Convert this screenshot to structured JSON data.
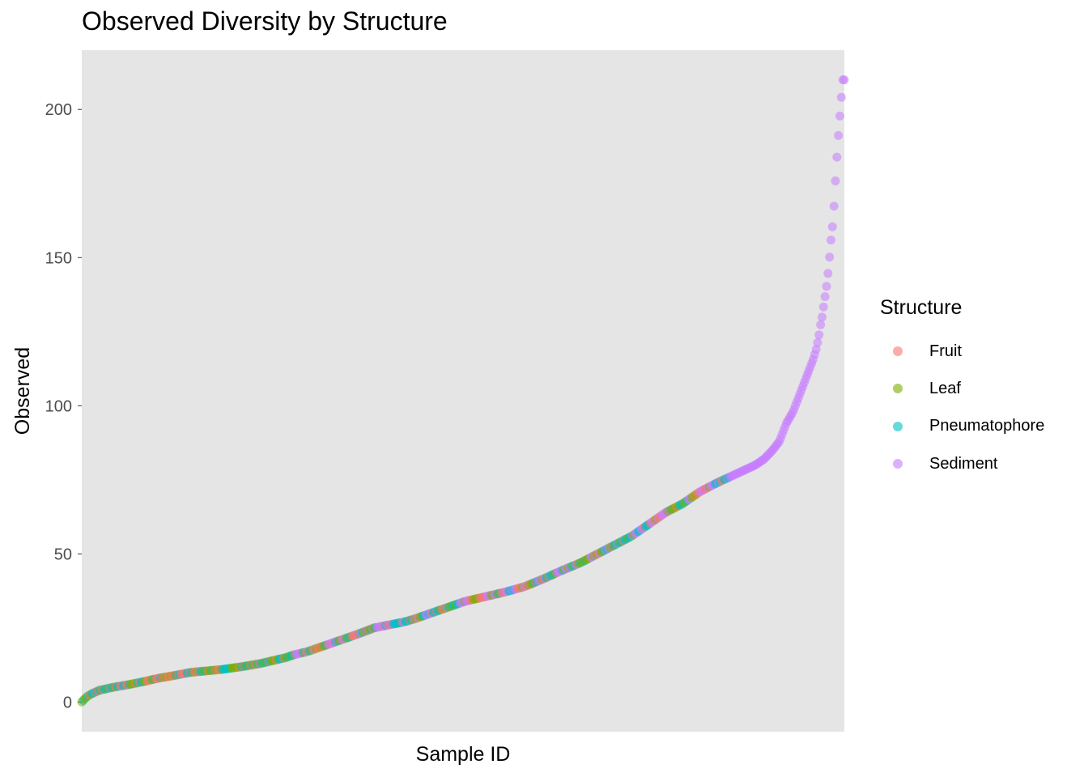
{
  "chart_data": {
    "type": "scatter",
    "title": "Observed Diversity by Structure",
    "xlabel": "Sample ID",
    "ylabel": "Observed",
    "ylim": [
      -10,
      220
    ],
    "y_ticks": [
      0,
      50,
      100,
      150,
      200
    ],
    "x_ticks_shown": false,
    "grid": false,
    "legend": {
      "title": "Structure",
      "position": "right"
    },
    "series": [
      {
        "name": "Fruit",
        "color": "#F8766D"
      },
      {
        "name": "Leaf",
        "color": "#7CAE00"
      },
      {
        "name": "Pneumatophore",
        "color": "#00BFC4"
      },
      {
        "name": "Sediment",
        "color": "#C77CFF"
      }
    ],
    "n_samples": 515,
    "observed_sorted_knots": [
      [
        1,
        0
      ],
      [
        4,
        1
      ],
      [
        8,
        2
      ],
      [
        14,
        3
      ],
      [
        22,
        4
      ],
      [
        38,
        5
      ],
      [
        58,
        6
      ],
      [
        75,
        7
      ],
      [
        90,
        8
      ],
      [
        110,
        9
      ],
      [
        128,
        10
      ],
      [
        165,
        11
      ],
      [
        190,
        12
      ],
      [
        210,
        13
      ],
      [
        225,
        14
      ],
      [
        240,
        15
      ],
      [
        250,
        16
      ],
      [
        265,
        17
      ],
      [
        275,
        18
      ],
      [
        285,
        19
      ],
      [
        295,
        20
      ],
      [
        305,
        21
      ],
      [
        315,
        22
      ],
      [
        325,
        23
      ],
      [
        343,
        25
      ],
      [
        360,
        26
      ],
      [
        378,
        27
      ],
      [
        390,
        28
      ],
      [
        410,
        30
      ],
      [
        430,
        32
      ],
      [
        450,
        34
      ],
      [
        465,
        35
      ],
      [
        495,
        37
      ],
      [
        520,
        39
      ],
      [
        545,
        42
      ],
      [
        560,
        44
      ],
      [
        585,
        47
      ],
      [
        605,
        50
      ],
      [
        625,
        53
      ],
      [
        645,
        56
      ],
      [
        665,
        60
      ],
      [
        685,
        64
      ],
      [
        705,
        67
      ],
      [
        725,
        71
      ],
      [
        745,
        74
      ],
      [
        760,
        76
      ],
      [
        775,
        78
      ],
      [
        790,
        80
      ],
      [
        800,
        82
      ],
      [
        810,
        85
      ],
      [
        818,
        88
      ],
      [
        822,
        91
      ],
      [
        826,
        94
      ],
      [
        830,
        96
      ],
      [
        834,
        98
      ],
      [
        838,
        101
      ],
      [
        842,
        104
      ],
      [
        846,
        107
      ],
      [
        850,
        110
      ],
      [
        854,
        113
      ],
      [
        858,
        116
      ],
      [
        861,
        119
      ],
      [
        864,
        123
      ],
      [
        866,
        127
      ],
      [
        868,
        130
      ],
      [
        870,
        134
      ],
      [
        872,
        138
      ],
      [
        874,
        142
      ],
      [
        876,
        148
      ],
      [
        878,
        155
      ],
      [
        880,
        160
      ],
      [
        882,
        168
      ],
      [
        884,
        178
      ],
      [
        886,
        187
      ],
      [
        888,
        195
      ],
      [
        890,
        202
      ],
      [
        892,
        210
      ],
      [
        894,
        210
      ]
    ],
    "group_bands": [
      {
        "from": 1,
        "to": 250,
        "mix": [
          "Leaf",
          "Fruit",
          "Pneumatophore"
        ]
      },
      {
        "from": 250,
        "to": 560,
        "mix": [
          "Pneumatophore",
          "Leaf",
          "Fruit",
          "Sediment"
        ]
      },
      {
        "from": 560,
        "to": 760,
        "mix": [
          "Sediment",
          "Fruit",
          "Leaf",
          "Pneumatophore"
        ]
      },
      {
        "from": 760,
        "to": 894,
        "mix": [
          "Sediment"
        ]
      }
    ]
  }
}
